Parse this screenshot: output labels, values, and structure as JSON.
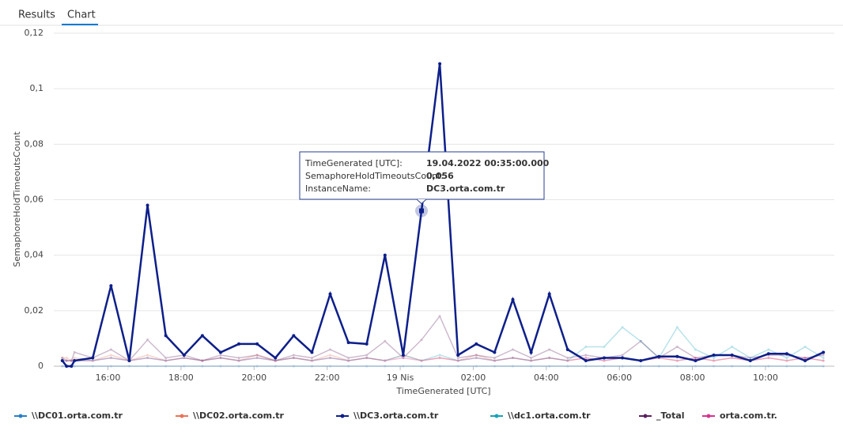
{
  "tabs": [
    "Results",
    "Chart"
  ],
  "active_tab": 1,
  "chart_data": {
    "type": "line",
    "x_label": "TimeGenerated [UTC]",
    "y_label": "SemaphoreHoldTimeoutsCount",
    "x": [
      "2022-04-18T14:45",
      "2022-04-18T14:52",
      "2022-04-18T15:00",
      "2022-04-18T15:05",
      "2022-04-18T15:35",
      "2022-04-18T16:05",
      "2022-04-18T16:35",
      "2022-04-18T17:05",
      "2022-04-18T17:35",
      "2022-04-18T18:05",
      "2022-04-18T18:35",
      "2022-04-18T19:05",
      "2022-04-18T19:35",
      "2022-04-18T20:05",
      "2022-04-18T20:35",
      "2022-04-18T21:05",
      "2022-04-18T21:35",
      "2022-04-18T22:05",
      "2022-04-18T22:35",
      "2022-04-18T23:05",
      "2022-04-18T23:35",
      "2022-04-19T00:05",
      "2022-04-19T00:35",
      "2022-04-19T01:05",
      "2022-04-19T01:35",
      "2022-04-19T02:05",
      "2022-04-19T02:35",
      "2022-04-19T03:05",
      "2022-04-19T03:35",
      "2022-04-19T04:05",
      "2022-04-19T04:35",
      "2022-04-19T05:05",
      "2022-04-19T05:35",
      "2022-04-19T06:05",
      "2022-04-19T06:35",
      "2022-04-19T07:05",
      "2022-04-19T07:35",
      "2022-04-19T08:05",
      "2022-04-19T08:35",
      "2022-04-19T09:05",
      "2022-04-19T09:35",
      "2022-04-19T10:05",
      "2022-04-19T10:35",
      "2022-04-19T11:05",
      "2022-04-19T11:35"
    ],
    "xlim": [
      "2022-04-18T14:31",
      "2022-04-19T11:53"
    ],
    "xticks": [
      {
        "value": "2022-04-18T16:00",
        "label": "16:00"
      },
      {
        "value": "2022-04-18T18:00",
        "label": "18:00"
      },
      {
        "value": "2022-04-18T20:00",
        "label": "20:00"
      },
      {
        "value": "2022-04-18T22:00",
        "label": "22:00"
      },
      {
        "value": "2022-04-19T00:00",
        "label": "19 Nis"
      },
      {
        "value": "2022-04-19T02:00",
        "label": "02:00"
      },
      {
        "value": "2022-04-19T04:00",
        "label": "04:00"
      },
      {
        "value": "2022-04-19T06:00",
        "label": "06:00"
      },
      {
        "value": "2022-04-19T08:00",
        "label": "08:00"
      },
      {
        "value": "2022-04-19T10:00",
        "label": "10:00"
      }
    ],
    "ylim": [
      0,
      0.12
    ],
    "yticks": [
      0,
      {
        "value": 0.02,
        "label": "0,02"
      },
      {
        "value": 0.04,
        "label": "0,04"
      },
      {
        "value": 0.06,
        "label": "0,06"
      },
      {
        "value": 0.08,
        "label": "0,08"
      },
      {
        "value": 0.1,
        "label": "0,1"
      },
      {
        "value": 0.12,
        "label": "0,12"
      }
    ],
    "grid": true,
    "legend": "bottom",
    "highlight_series": 2,
    "series": [
      {
        "name": "\\\\DC01.orta.com.tr",
        "color": "#2a7fc9",
        "values": [
          0,
          0,
          0,
          0,
          0,
          0,
          0,
          0,
          0,
          0,
          0,
          0,
          0,
          0,
          0,
          0,
          0,
          0,
          0,
          0,
          0,
          0,
          0,
          0,
          0,
          0,
          0,
          0,
          0,
          0,
          0,
          0,
          0,
          0,
          0,
          0,
          0,
          0,
          0,
          0,
          0,
          0,
          0,
          0,
          0
        ]
      },
      {
        "name": "\\\\DC02.orta.com.tr",
        "color": "#e8735a",
        "values": [
          0.003,
          0.003,
          0.002,
          0.003,
          0.002,
          0.004,
          0.002,
          0.004,
          0.002,
          0.003,
          0.002,
          0.003,
          0.002,
          0.004,
          0.002,
          0.003,
          0.002,
          0.004,
          0.002,
          0.003,
          0.002,
          0.004,
          0.002,
          0.003,
          0.002,
          0.004,
          0.002,
          0.003,
          0.002,
          0.003,
          0.002,
          0.003,
          0.002,
          0.003,
          0.002,
          0.003,
          0.002,
          0.003,
          0.002,
          0.003,
          0.002,
          0.003,
          0.002,
          0.003,
          0.002
        ]
      },
      {
        "name": "\\\\DC3.orta.com.tr",
        "color": "#0d1f8a",
        "values": [
          0.002,
          0,
          0,
          0.002,
          0.003,
          0.029,
          0.002,
          0.058,
          0.011,
          0.004,
          0.011,
          0.005,
          0.008,
          0.008,
          0.003,
          0.011,
          0.005,
          0.026,
          0.0085,
          0.008,
          0.04,
          0.004,
          0.056,
          0.109,
          0.004,
          0.008,
          0.005,
          0.024,
          0.005,
          0.026,
          0.006,
          0.002,
          0.003,
          0.003,
          0.002,
          0.0035,
          0.0035,
          0.002,
          0.004,
          0.004,
          0.002,
          0.0045,
          0.0045,
          0.002,
          0.005
        ]
      },
      {
        "name": "\\\\dc1.orta.com.tr",
        "color": "#17a2b8",
        "values": [
          0.002,
          0.002,
          0.002,
          0.002,
          0.002,
          0.003,
          0.002,
          0.003,
          0.002,
          0.003,
          0.002,
          0.003,
          0.002,
          0.003,
          0.002,
          0.003,
          0.002,
          0.003,
          0.002,
          0.003,
          0.002,
          0.004,
          0.002,
          0.004,
          0.002,
          0.003,
          0.002,
          0.003,
          0.002,
          0.003,
          0.002,
          0.007,
          0.007,
          0.014,
          0.009,
          0.003,
          0.014,
          0.006,
          0.003,
          0.007,
          0.003,
          0.006,
          0.003,
          0.007,
          0.003
        ]
      },
      {
        "name": "_Total",
        "color": "#5c1f5e",
        "values": [
          0.003,
          0.002,
          0.002,
          0.005,
          0.003,
          0.006,
          0.002,
          0.0095,
          0.003,
          0.004,
          0.002,
          0.004,
          0.003,
          0.004,
          0.002,
          0.004,
          0.003,
          0.006,
          0.003,
          0.004,
          0.009,
          0.003,
          0.0095,
          0.018,
          0.003,
          0.004,
          0.003,
          0.006,
          0.003,
          0.006,
          0.003,
          0.004,
          0.003,
          0.004,
          0.009,
          0.003,
          0.007,
          0.003,
          0.004,
          0.004,
          0.003,
          0.004,
          0.004,
          0.003,
          0.004
        ]
      },
      {
        "name": "orta.com.tr.",
        "color": "#d6338f",
        "values": [
          0.002,
          0.002,
          0.002,
          0.002,
          0.002,
          0.003,
          0.002,
          0.003,
          0.002,
          0.003,
          0.002,
          0.003,
          0.002,
          0.003,
          0.002,
          0.003,
          0.002,
          0.003,
          0.002,
          0.003,
          0.002,
          0.003,
          0.002,
          0.003,
          0.002,
          0.003,
          0.002,
          0.003,
          0.002,
          0.003,
          0.002,
          0.003,
          0.002,
          0.003,
          0.002,
          0.003,
          0.002,
          0.003,
          0.002,
          0.003,
          0.002,
          0.003,
          0.002,
          0.003,
          0.002
        ]
      }
    ],
    "tooltip": {
      "series_index": 2,
      "point_index": 22,
      "rows": [
        {
          "label": "TimeGenerated [UTC]:",
          "value": "19.04.2022 00:35:00.000"
        },
        {
          "label": "SemaphoreHoldTimeoutsCount:",
          "value": "0,056"
        },
        {
          "label": "InstanceName:",
          "value": "DC3.orta.com.tr"
        }
      ]
    }
  }
}
